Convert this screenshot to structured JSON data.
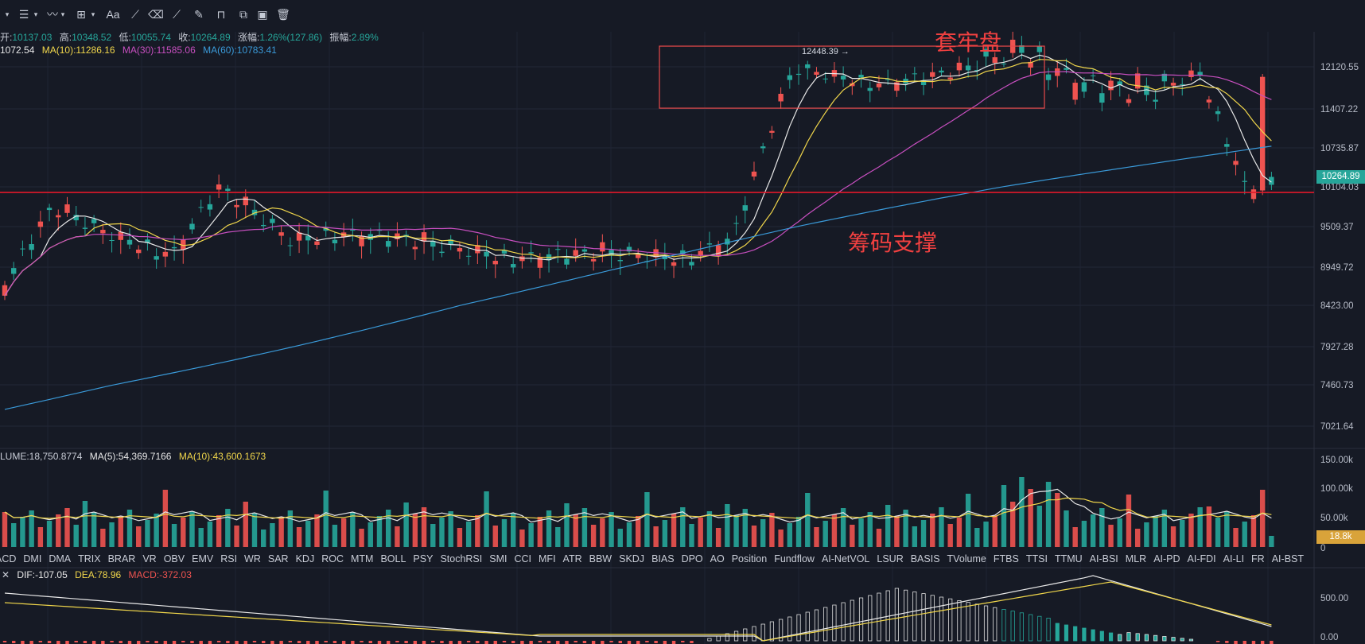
{
  "toolbar": {
    "icons": [
      "chevron-down-icon",
      "indicator-list-icon",
      "chevron-down-icon",
      "line-style-icon",
      "chevron-down-icon",
      "crosshair-add-icon",
      "chevron-down-icon",
      "text-tool-icon",
      "draw-line-icon",
      "eraser-icon",
      "ruler-icon",
      "brush-icon",
      "lock-icon",
      "copy-icon",
      "screenshot-icon",
      "trash-icon"
    ],
    "text_label": "Aa"
  },
  "ohlc": {
    "open_label": "开:",
    "open": "10137.03",
    "high_label": "高:",
    "high": "10348.52",
    "low_label": "低:",
    "low": "10055.74",
    "close_label": "收:",
    "close": "10264.89",
    "change_label": "涨幅:",
    "change": "1.26%(127.86)",
    "amp_label": "振幅:",
    "amp": "2.89%"
  },
  "ma": {
    "ma5": "1072.54",
    "ma10": "MA(10):11286.16",
    "ma30": "MA(30):11585.06",
    "ma60": "MA(60):10783.41"
  },
  "volume_info": {
    "vol": "LUME:18,750.8774",
    "ma5": "MA(5):54,369.7166",
    "ma10": "MA(10):43,600.1673"
  },
  "macd_info": {
    "dif": "DIF:-107.05",
    "dea": "DEA:78.96",
    "macd": "MACD:-372.03"
  },
  "indicator_tabs": [
    "ACD",
    "DMI",
    "DMA",
    "TRIX",
    "BRAR",
    "VR",
    "OBV",
    "EMV",
    "RSI",
    "WR",
    "SAR",
    "KDJ",
    "ROC",
    "MTM",
    "BOLL",
    "PSY",
    "StochRSI",
    "SMI",
    "CCI",
    "MFI",
    "ATR",
    "BBW",
    "SKDJ",
    "BIAS",
    "DPO",
    "AO",
    "Position",
    "Fundflow",
    "AI-NetVOL",
    "LSUR",
    "BASIS",
    "TVolume",
    "FTBS",
    "TTSI",
    "TTMU",
    "AI-BSI",
    "MLR",
    "AI-PD",
    "AI-FDI",
    "AI-LI",
    "FR",
    "AI-BST"
  ],
  "annotations": {
    "top": "套牢盘",
    "bottom": "筹码支撑",
    "high_marker": "12448.39"
  },
  "price_tags": {
    "current": "10264.89",
    "volume": "18.8k"
  },
  "colors": {
    "up": "#26a69a",
    "down": "#ef5350",
    "ma5": "#e8e8e8",
    "ma10": "#f0d64b",
    "ma30": "#c84fc0",
    "ma60": "#3a9ad9",
    "support_line": "#e0192a",
    "box": "#e84a4a"
  },
  "chart_data": {
    "type": "candlestick",
    "price_axis_ticks": [
      12120.55,
      11407.22,
      10735.87,
      10104.03,
      9509.37,
      8949.72,
      8423.0,
      7927.28,
      7460.73,
      7021.64
    ],
    "price_axis_labels": [
      "12120.55",
      "11407.22",
      "10735.87",
      "10104.03",
      "9509.37",
      "8949.72",
      "8423.00",
      "7927.28",
      "7460.73",
      "7021.64"
    ],
    "volume_axis_labels": [
      "150.00k",
      "100.00k",
      "50.00k",
      "0"
    ],
    "macd_axis_labels": [
      "500.00",
      "0.00"
    ],
    "support_level": 10020,
    "resistance_box": {
      "top": 12470,
      "bottom": 11420
    },
    "pattern_offsets": [
      0,
      -30,
      60,
      -80,
      40,
      20,
      -50,
      90,
      -20,
      -60,
      30,
      10,
      -40,
      70,
      -10,
      -30,
      50,
      -70,
      20,
      40
    ]
  }
}
